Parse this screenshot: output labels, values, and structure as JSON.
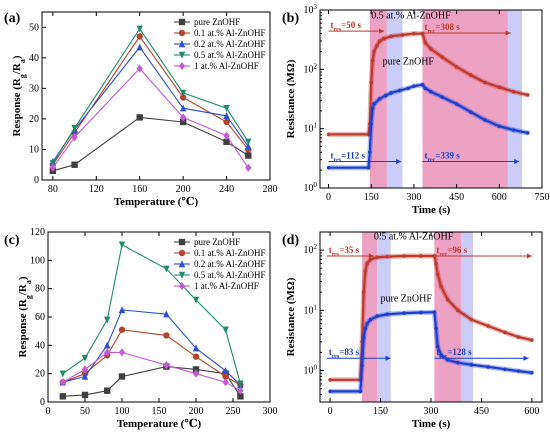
{
  "chart_data": [
    {
      "type": "line",
      "panel_label": "(a)",
      "xlabel": "Temperature (℃)",
      "ylabel": "Response (Rg/Ra)",
      "xlim": [
        70,
        280
      ],
      "ylim": [
        0,
        55
      ],
      "xticks": [
        80,
        120,
        160,
        200,
        240,
        280
      ],
      "yticks": [
        0,
        10,
        20,
        30,
        40,
        50
      ],
      "legend_position": "top-right",
      "series": [
        {
          "name": "pure ZnOHF",
          "color": "#404040",
          "marker": "square",
          "x": [
            80,
            100,
            160,
            200,
            240,
            260
          ],
          "y": [
            3,
            5,
            20.5,
            19,
            12.5,
            8
          ]
        },
        {
          "name": "0.1 at.% Al-ZnOHF",
          "color": "#b5452f",
          "marker": "circle",
          "x": [
            80,
            100,
            160,
            200,
            240,
            260
          ],
          "y": [
            5,
            15.5,
            47,
            27,
            19,
            10
          ]
        },
        {
          "name": "0.2 at.% Al-ZnOHF",
          "color": "#2b4fd6",
          "marker": "triangle-up",
          "x": [
            80,
            100,
            160,
            200,
            240,
            260
          ],
          "y": [
            6,
            16.5,
            43.5,
            23.5,
            21,
            11
          ]
        },
        {
          "name": "0.5 at.% Al-ZnOHF",
          "color": "#1f8c6a",
          "marker": "triangle-down",
          "x": [
            80,
            100,
            160,
            200,
            240,
            260
          ],
          "y": [
            5.5,
            17,
            49.5,
            28.5,
            23.5,
            12.5
          ]
        },
        {
          "name": "1 at.% Al-ZnOHF",
          "color": "#c45bd6",
          "marker": "diamond",
          "x": [
            80,
            100,
            160,
            200,
            240,
            260
          ],
          "y": [
            4,
            14,
            36.5,
            20.5,
            14.5,
            4
          ]
        }
      ]
    },
    {
      "type": "line",
      "panel_label": "(b)",
      "xlabel": "Time (s)",
      "ylabel": "Resistance (MΩ)",
      "yscale": "log",
      "xlim": [
        -30,
        750
      ],
      "ylim": [
        1,
        1000
      ],
      "xticks": [
        0,
        150,
        300,
        450,
        600,
        750
      ],
      "yticks": [
        1,
        10,
        100,
        1000
      ],
      "ytick_labels": [
        "10^0",
        "10^1",
        "10^2",
        "10^3"
      ],
      "regions": [
        {
          "x0": 145,
          "x1": 205,
          "color": "#d6307a"
        },
        {
          "x0": 205,
          "x1": 260,
          "color": "#8e8ef0"
        },
        {
          "x0": 330,
          "x1": 630,
          "color": "#d6307a"
        },
        {
          "x0": 630,
          "x1": 680,
          "color": "#8e8ef0"
        }
      ],
      "arrows": [
        {
          "label": "tres=50 s",
          "x0": 0,
          "x1": 195,
          "y": 440,
          "color": "#c0392b"
        },
        {
          "label": "trec=308 s",
          "x0": 330,
          "x1": 640,
          "y": 410,
          "color": "#c0392b"
        },
        {
          "label": "tres=112 s",
          "x0": 0,
          "x1": 255,
          "y": 2.8,
          "color": "#1a3fd0"
        },
        {
          "label": "trec=339 s",
          "x0": 330,
          "x1": 670,
          "y": 2.8,
          "color": "#1a3fd0"
        }
      ],
      "annotations": [
        {
          "text": "0.5 at.% Al-ZnOHF",
          "x": 150,
          "y": 720,
          "color": "#000"
        },
        {
          "text": "pure ZnOHF",
          "x": 190,
          "y": 120,
          "color": "#000"
        }
      ],
      "series": [
        {
          "name": "0.5 at.% Al-ZnOHF",
          "color": "#c0392b",
          "x": [
            0,
            140,
            145,
            150,
            155,
            160,
            170,
            180,
            195,
            220,
            260,
            300,
            330,
            340,
            360,
            400,
            450,
            500,
            550,
            600,
            650,
            700
          ],
          "y": [
            8,
            8,
            12,
            60,
            140,
            200,
            250,
            300,
            330,
            360,
            380,
            400,
            400,
            280,
            220,
            160,
            110,
            80,
            60,
            50,
            42,
            37
          ]
        },
        {
          "name": "pure ZnOHF",
          "color": "#1a3fd0",
          "x": [
            0,
            140,
            145,
            150,
            155,
            160,
            180,
            200,
            220,
            250,
            280,
            300,
            330,
            340,
            360,
            400,
            450,
            500,
            550,
            600,
            650,
            700
          ],
          "y": [
            2.2,
            2.2,
            4,
            12,
            22,
            26,
            32,
            36,
            40,
            44,
            48,
            52,
            55,
            48,
            42,
            34,
            26,
            19,
            14,
            11,
            9.5,
            8.5
          ]
        }
      ]
    },
    {
      "type": "line",
      "panel_label": "(c)",
      "xlabel": "Temperature (℃)",
      "ylabel": "Response (Rg/Ra)",
      "xlim": [
        0,
        300
      ],
      "ylim": [
        0,
        120
      ],
      "xticks": [
        0,
        50,
        100,
        150,
        200,
        250,
        300
      ],
      "yticks": [
        0,
        20,
        40,
        60,
        80,
        100,
        120
      ],
      "legend_position": "top-right",
      "series": [
        {
          "name": "pure ZnOHF",
          "color": "#404040",
          "marker": "square",
          "x": [
            20,
            50,
            80,
            100,
            160,
            200,
            240,
            260
          ],
          "y": [
            4,
            5,
            8,
            18,
            25,
            23,
            20,
            4
          ]
        },
        {
          "name": "0.1 at.% Al-ZnOHF",
          "color": "#b5452f",
          "marker": "circle",
          "x": [
            20,
            50,
            80,
            100,
            160,
            200,
            240,
            260
          ],
          "y": [
            14,
            20,
            33,
            51,
            47,
            32,
            18,
            12
          ]
        },
        {
          "name": "0.2 at.% Al-ZnOHF",
          "color": "#2b4fd6",
          "marker": "triangle-up",
          "x": [
            20,
            50,
            80,
            100,
            160,
            200,
            240,
            260
          ],
          "y": [
            14,
            18,
            40,
            65,
            62,
            38,
            22,
            12
          ]
        },
        {
          "name": "0.5 at.% Al-ZnOHF",
          "color": "#1f8c6a",
          "marker": "triangle-down",
          "x": [
            20,
            50,
            80,
            100,
            160,
            200,
            240,
            260
          ],
          "y": [
            20,
            31,
            58,
            111,
            94,
            72,
            51,
            13
          ]
        },
        {
          "name": "1 at.% Al-ZnOHF",
          "color": "#c45bd6",
          "marker": "diamond",
          "x": [
            20,
            50,
            80,
            100,
            160,
            200,
            240,
            260
          ],
          "y": [
            14,
            23,
            35,
            35,
            26,
            20,
            14,
            8
          ]
        }
      ]
    },
    {
      "type": "line",
      "panel_label": "(d)",
      "xlabel": "Time (s)",
      "ylabel": "Resistance (MΩ)",
      "yscale": "log",
      "xlim": [
        -30,
        630
      ],
      "ylim": [
        0.3,
        200
      ],
      "xticks": [
        0,
        150,
        300,
        450,
        600
      ],
      "yticks": [
        1,
        10,
        100
      ],
      "ytick_labels": [
        "10^0",
        "10^1",
        "10^2"
      ],
      "regions": [
        {
          "x0": 95,
          "x1": 140,
          "color": "#d6307a"
        },
        {
          "x0": 140,
          "x1": 180,
          "color": "#8e8ef0"
        },
        {
          "x0": 310,
          "x1": 390,
          "color": "#d6307a"
        },
        {
          "x0": 390,
          "x1": 425,
          "color": "#8e8ef0"
        }
      ],
      "arrows": [
        {
          "label": "tres=35 s",
          "x0": -10,
          "x1": 130,
          "y": 80,
          "color": "#c0392b"
        },
        {
          "label": "trec=96 s",
          "x0": 310,
          "x1": 600,
          "y": 80,
          "color": "#c0392b"
        },
        {
          "label": "tres=83 s",
          "x0": -10,
          "x1": 180,
          "y": 1.6,
          "color": "#1a3fd0"
        },
        {
          "label": "trec=128 s",
          "x0": 310,
          "x1": 590,
          "y": 1.6,
          "color": "#1a3fd0"
        }
      ],
      "annotations": [
        {
          "text": "0.5 at.% Al-ZnOHF",
          "x": 130,
          "y": 150,
          "color": "#000"
        },
        {
          "text": "pure ZnOHF",
          "x": 150,
          "y": 14,
          "color": "#000"
        }
      ],
      "series": [
        {
          "name": "0.5 at.% Al-ZnOHF",
          "color": "#c0392b",
          "x": [
            0,
            90,
            95,
            100,
            105,
            110,
            120,
            140,
            170,
            220,
            270,
            310,
            315,
            320,
            330,
            350,
            380,
            420,
            470,
            520,
            560,
            600
          ],
          "y": [
            0.7,
            0.7,
            3,
            20,
            45,
            60,
            70,
            76,
            78,
            80,
            80,
            80,
            60,
            40,
            25,
            15,
            10,
            7,
            5.5,
            4.3,
            3.6,
            3.2
          ]
        },
        {
          "name": "pure ZnOHF",
          "color": "#1a3fd0",
          "x": [
            0,
            90,
            95,
            100,
            105,
            110,
            120,
            140,
            170,
            220,
            270,
            310,
            315,
            320,
            330,
            350,
            380,
            420,
            470,
            520,
            560,
            600
          ],
          "y": [
            0.45,
            0.45,
            1.2,
            3.5,
            5,
            6,
            7,
            8,
            8.6,
            9,
            9.2,
            9.3,
            5,
            2.5,
            1.8,
            1.5,
            1.35,
            1.25,
            1.15,
            1.05,
            0.98,
            0.92
          ]
        }
      ]
    }
  ]
}
